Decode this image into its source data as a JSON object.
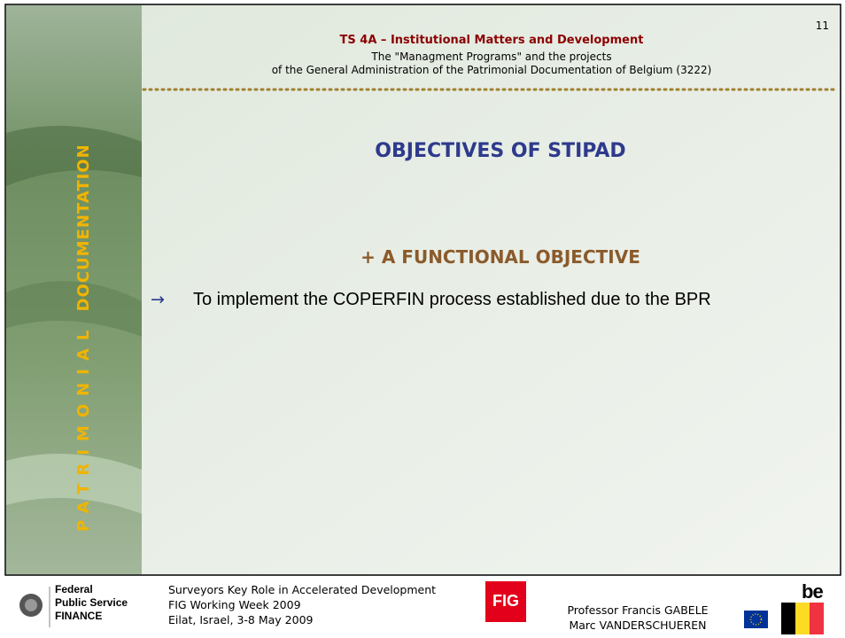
{
  "page_number": "11",
  "side_banner": {
    "word1": "PATRIMONIAL",
    "word2": "DOCUMENTATION"
  },
  "header": {
    "session": "TS 4A – Institutional Matters and Development",
    "line1": "The \"Managment Programs\" and the projects",
    "line2": "of the General Administration of the Patrimonial Documentation of Belgium (3222)"
  },
  "title": "OBJECTIVES OF STIPAD",
  "subtitle": "+ A FUNCTIONAL OBJECTIVE",
  "bullet": {
    "symbol": "→",
    "text": "To implement the COPERFIN process established due to the BPR"
  },
  "footer": {
    "org": [
      "Federal",
      "Public Service",
      "FINANCE"
    ],
    "event": [
      "Surveyors Key Role in Accelerated Development",
      "FIG Working Week 2009",
      "Eilat, Israel, 3-8 May 2009"
    ],
    "fig_logo": "FIG",
    "authors": [
      "Professor Francis GABELE",
      "Marc VANDERSCHUEREN"
    ],
    "be_logo": "be"
  }
}
